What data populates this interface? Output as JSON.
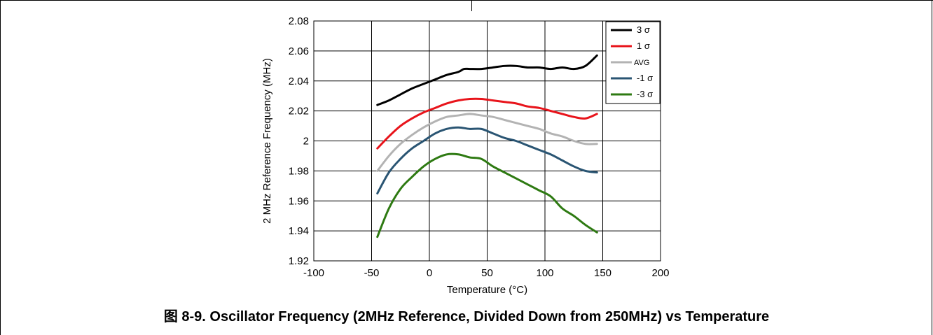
{
  "caption": {
    "prefix": "图 8-9.",
    "text": "Oscillator Frequency (2MHz Reference, Divided Down from 250MHz) vs Temperature"
  },
  "chart_data": {
    "type": "line",
    "title": "",
    "xlabel": "Temperature (°C)",
    "ylabel": "2 MHz Reference Frequency (MHz)",
    "xlim": [
      -100,
      200
    ],
    "ylim": [
      1.92,
      2.08
    ],
    "x_ticks": [
      -100,
      -50,
      0,
      50,
      100,
      150,
      200
    ],
    "y_ticks": [
      1.92,
      1.94,
      1.96,
      1.98,
      2,
      2.02,
      2.04,
      2.06,
      2.08
    ],
    "grid": true,
    "legend_position": "top-right",
    "series": [
      {
        "name": "3 σ",
        "color": "#000000",
        "x": [
          -45,
          -35,
          -25,
          -15,
          -5,
          5,
          15,
          25,
          30,
          35,
          45,
          55,
          65,
          75,
          85,
          95,
          105,
          115,
          125,
          135,
          145
        ],
        "y": [
          2.024,
          2.027,
          2.031,
          2.035,
          2.038,
          2.041,
          2.044,
          2.046,
          2.048,
          2.048,
          2.048,
          2.049,
          2.05,
          2.05,
          2.049,
          2.049,
          2.048,
          2.049,
          2.048,
          2.05,
          2.057
        ]
      },
      {
        "name": "1 σ",
        "color": "#e8141b",
        "x": [
          -45,
          -35,
          -25,
          -15,
          -5,
          5,
          15,
          25,
          35,
          45,
          55,
          65,
          75,
          85,
          95,
          105,
          115,
          125,
          135,
          145
        ],
        "y": [
          1.995,
          2.003,
          2.01,
          2.015,
          2.019,
          2.022,
          2.025,
          2.027,
          2.028,
          2.028,
          2.027,
          2.026,
          2.025,
          2.023,
          2.022,
          2.02,
          2.018,
          2.016,
          2.015,
          2.018
        ]
      },
      {
        "name": "AVG",
        "color": "#b3b3b3",
        "x": [
          -45,
          -35,
          -25,
          -15,
          -5,
          5,
          15,
          25,
          35,
          45,
          55,
          65,
          75,
          85,
          95,
          105,
          115,
          125,
          135,
          145
        ],
        "y": [
          1.98,
          1.99,
          1.998,
          2.004,
          2.009,
          2.013,
          2.016,
          2.017,
          2.018,
          2.017,
          2.016,
          2.014,
          2.012,
          2.01,
          2.008,
          2.005,
          2.003,
          2.0,
          1.998,
          1.998
        ]
      },
      {
        "name": "-1 σ",
        "color": "#2a5573",
        "x": [
          -45,
          -35,
          -25,
          -15,
          -5,
          5,
          15,
          25,
          35,
          45,
          55,
          65,
          75,
          85,
          95,
          105,
          115,
          125,
          135,
          145
        ],
        "y": [
          1.965,
          1.979,
          1.988,
          1.995,
          2.0,
          2.005,
          2.008,
          2.009,
          2.008,
          2.008,
          2.005,
          2.002,
          2.0,
          1.997,
          1.994,
          1.991,
          1.987,
          1.983,
          1.98,
          1.979
        ]
      },
      {
        "name": "-3 σ",
        "color": "#2e7a12",
        "x": [
          -45,
          -35,
          -25,
          -15,
          -5,
          5,
          15,
          25,
          35,
          45,
          55,
          65,
          75,
          85,
          95,
          105,
          115,
          125,
          135,
          145
        ],
        "y": [
          1.936,
          1.955,
          1.968,
          1.976,
          1.983,
          1.988,
          1.991,
          1.991,
          1.989,
          1.988,
          1.983,
          1.979,
          1.975,
          1.971,
          1.967,
          1.963,
          1.955,
          1.95,
          1.944,
          1.939
        ]
      }
    ]
  }
}
